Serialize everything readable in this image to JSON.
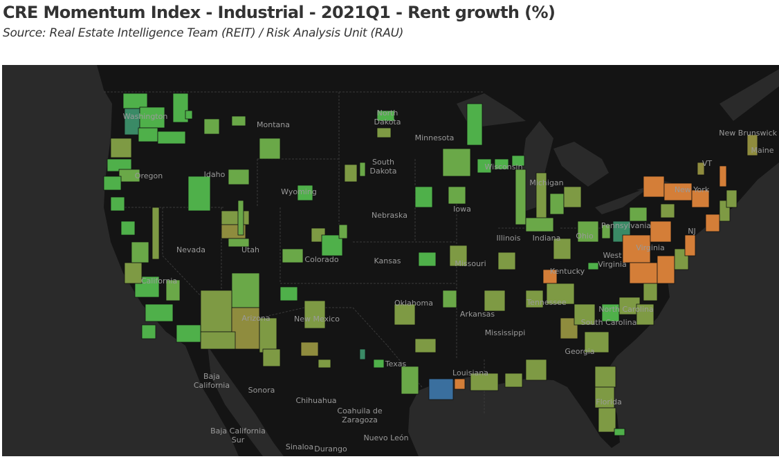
{
  "title": "CRE Momentum Index - Industrial - 2021Q1 - Rent growth (%)",
  "subtitle": "Source: Real Estate Intelligence Team (REIT) / Risk Analysis Unit (RAU)",
  "map": {
    "background_ocean": "#2a2a2a",
    "land_color": "#141414",
    "color_scale": {
      "high_green": "#4fb04a",
      "green": "#6aa848",
      "olive_green": "#7e9a44",
      "olive": "#8f8c3e",
      "orange": "#d47e38",
      "teal": "#3a8a66",
      "blue": "#3a6f9e"
    },
    "place_labels": [
      "Washington",
      "Montana",
      "North Dakota",
      "Minnesota",
      "South Dakota",
      "Wisconsin",
      "Oregon",
      "Idaho",
      "Wyoming",
      "Nebraska",
      "Iowa",
      "Michigan",
      "New York",
      "VT",
      "Maine",
      "New Brunswick",
      "Nevada",
      "Utah",
      "Colorado",
      "Kansas",
      "Missouri",
      "Illinois",
      "Indiana",
      "Ohio",
      "Pennsylvania",
      "NJ",
      "West Virginia",
      "Virginia",
      "Kentucky",
      "Tennessee",
      "North Carolina",
      "South Carolina",
      "California",
      "Arizona",
      "New Mexico",
      "Oklahoma",
      "Arkansas",
      "Mississippi",
      "Georgia",
      "Texas",
      "Louisiana",
      "Florida",
      "Baja California",
      "Sonora",
      "Chihuahua",
      "Coahuila de Zaragoza",
      "Nuevo León",
      "Baja California Sur",
      "Sinaloa",
      "Durango"
    ]
  }
}
